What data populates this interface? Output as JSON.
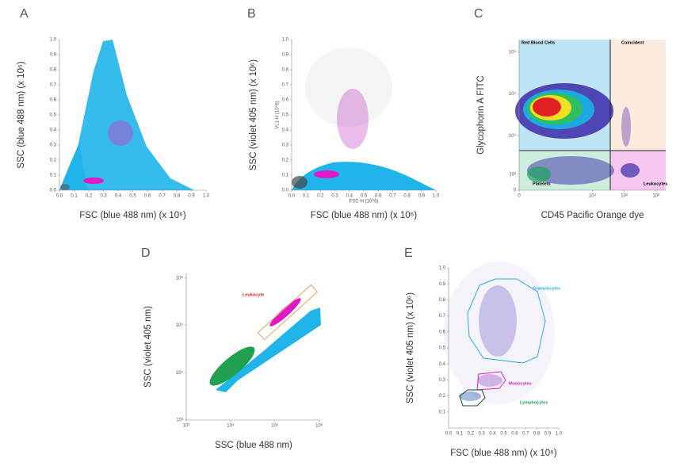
{
  "chart_data": [
    {
      "type": "scatter",
      "panel": "A",
      "xlabel": "FSC (blue 488 nm) (x 10⁶)",
      "ylabel": "SSC (blue 488 nm) (x 10⁶)",
      "xlim": [
        0,
        1
      ],
      "ylim": [
        0,
        1
      ],
      "xticks": [
        {
          "value": 0,
          "label": "0.0"
        },
        0.1,
        0.2,
        0.3,
        0.4,
        0.5,
        0.6,
        0.7,
        0.8,
        0.9,
        {
          "value": 1,
          "label": "1.0"
        }
      ],
      "yticks": [
        {
          "value": 0,
          "label": "0.0"
        },
        0.1,
        0.2,
        0.3,
        0.4,
        0.5,
        0.6,
        0.7,
        0.8,
        0.9,
        {
          "value": 1,
          "label": "1.0"
        }
      ]
    },
    {
      "type": "scatter",
      "panel": "B",
      "xlabel": "FSC (blue 488 nm) (x 10⁶)",
      "ylabel": "SSC (violet 405 nm) (x 10⁶)",
      "inner_xlabel": "FSC-H (10^6)",
      "inner_ylabel": "VL1-H (10^6)",
      "xlim": [
        0,
        1
      ],
      "ylim": [
        0,
        1
      ],
      "xticks": [
        {
          "value": 0,
          "label": "0.0"
        },
        0.1,
        0.2,
        0.3,
        0.4,
        0.5,
        0.6,
        0.7,
        0.8,
        0.9,
        {
          "value": 1,
          "label": "1.0"
        }
      ],
      "yticks": [
        {
          "value": 0,
          "label": "0.0"
        },
        0.1,
        0.2,
        0.3,
        0.4,
        0.5,
        0.6,
        0.7,
        0.8,
        0.9,
        {
          "value": 1,
          "label": "1.0"
        }
      ]
    },
    {
      "type": "scatter",
      "panel": "C",
      "xlabel": "CD45 Pacific Orange dye",
      "ylabel": "Glycophorin A FITC",
      "scale": "biexponential",
      "xlim": [
        0,
        2000000
      ],
      "ylim": [
        0,
        2000000
      ],
      "xticks": [
        0,
        {
          "value": 10000,
          "label": "10⁴"
        },
        {
          "value": 100000,
          "label": "10⁵"
        },
        {
          "value": 1000000,
          "label": "10⁶"
        }
      ],
      "yticks": [
        0,
        {
          "value": 1000,
          "label": "10³"
        },
        {
          "value": 10000,
          "label": "10⁴"
        },
        {
          "value": 100000,
          "label": "10⁵"
        },
        {
          "value": 1000000,
          "label": "10⁶"
        }
      ],
      "gates": [
        {
          "label": "Red Blood Cells",
          "color": "#000000"
        },
        {
          "label": "Coincident",
          "color": "#000000"
        },
        {
          "label": "Platelets",
          "color": "#000000"
        },
        {
          "label": "Leukocytes",
          "color": "#000000"
        }
      ]
    },
    {
      "type": "scatter",
      "panel": "D",
      "xlabel": "SSC (blue 488 nm)",
      "ylabel": "SSC (violet 405 nm)",
      "scale": "log",
      "xlim": [
        1000,
        1100000
      ],
      "ylim": [
        1000,
        1250000
      ],
      "xticks": [
        {
          "value": 1000,
          "label": "10³"
        },
        {
          "value": 10000,
          "label": "10⁴"
        },
        {
          "value": 100000,
          "label": "10⁵"
        },
        {
          "value": 1000000,
          "label": "10⁶"
        }
      ],
      "yticks": [
        {
          "value": 1000,
          "label": "10³"
        },
        {
          "value": 10000,
          "label": "10⁴"
        },
        {
          "value": 100000,
          "label": "10⁵"
        },
        {
          "value": 1000000,
          "label": "10⁶"
        }
      ],
      "gates": [
        {
          "label": "Leukocyte",
          "color": "#e02020"
        }
      ]
    },
    {
      "type": "scatter",
      "panel": "E",
      "xlabel": "FSC (blue 488 nm) (x 10⁶)",
      "ylabel": "SSC (violet 405 nm) (x 10⁶)",
      "xlim": [
        0,
        1
      ],
      "ylim": [
        0,
        1
      ],
      "xticks": [
        {
          "value": 0,
          "label": "0.0"
        },
        0.1,
        0.2,
        0.3,
        0.4,
        0.5,
        0.6,
        0.7,
        0.8,
        0.9,
        {
          "value": 1,
          "label": "1.0"
        }
      ],
      "yticks": [
        0.1,
        0.2,
        0.3,
        0.4,
        0.5,
        0.6,
        0.7,
        0.8,
        0.9,
        {
          "value": 1,
          "label": "1.0"
        }
      ],
      "gates": [
        {
          "label": "Granulocytes",
          "color": "#29abe2"
        },
        {
          "label": "Monocytes",
          "color": "#d81cc0"
        },
        {
          "label": "Lymphocytes",
          "color": "#1a9a50"
        }
      ]
    }
  ]
}
